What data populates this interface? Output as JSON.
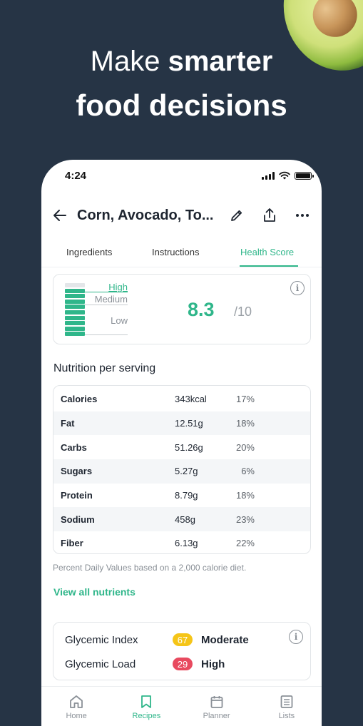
{
  "headline": {
    "line1_light": "Make",
    "line1_bold": "smarter",
    "line2": "food decisions"
  },
  "status": {
    "time": "4:24"
  },
  "header": {
    "title": "Corn, Avocado, To..."
  },
  "tabs": [
    {
      "label": "Ingredients",
      "active": false
    },
    {
      "label": "Instructions",
      "active": false
    },
    {
      "label": "Health Score",
      "active": true
    }
  ],
  "health_score": {
    "value": "8.3",
    "max": "/10",
    "gauge_labels": {
      "high": "High",
      "medium": "Medium",
      "low": "Low"
    }
  },
  "nutrition": {
    "title": "Nutrition per serving",
    "rows": [
      {
        "name": "Calories",
        "value": "343kcal",
        "pct": "17%"
      },
      {
        "name": "Fat",
        "value": "12.51g",
        "pct": "18%"
      },
      {
        "name": "Carbs",
        "value": "51.26g",
        "pct": "20%"
      },
      {
        "name": "Sugars",
        "value": "5.27g",
        "pct": "6%"
      },
      {
        "name": "Protein",
        "value": "8.79g",
        "pct": "18%"
      },
      {
        "name": "Sodium",
        "value": "458g",
        "pct": "23%"
      },
      {
        "name": "Fiber",
        "value": "6.13g",
        "pct": "22%"
      }
    ],
    "footnote": "Percent Daily Values based on a 2,000 calorie diet.",
    "view_all": "View all nutrients"
  },
  "glycemic": {
    "index": {
      "label": "Glycemic Index",
      "value": "67",
      "text": "Moderate",
      "color": "#f5c518"
    },
    "load": {
      "label": "Glycemic Load",
      "value": "29",
      "text": "High",
      "color": "#e84a5f"
    }
  },
  "tabbar": [
    {
      "label": "Home",
      "icon": "home-icon",
      "active": false
    },
    {
      "label": "Recipes",
      "icon": "bookmark-icon",
      "active": true
    },
    {
      "label": "Planner",
      "icon": "calendar-icon",
      "active": false
    },
    {
      "label": "Lists",
      "icon": "list-icon",
      "active": false
    }
  ],
  "colors": {
    "accent": "#2fb68a",
    "background": "#263445"
  }
}
